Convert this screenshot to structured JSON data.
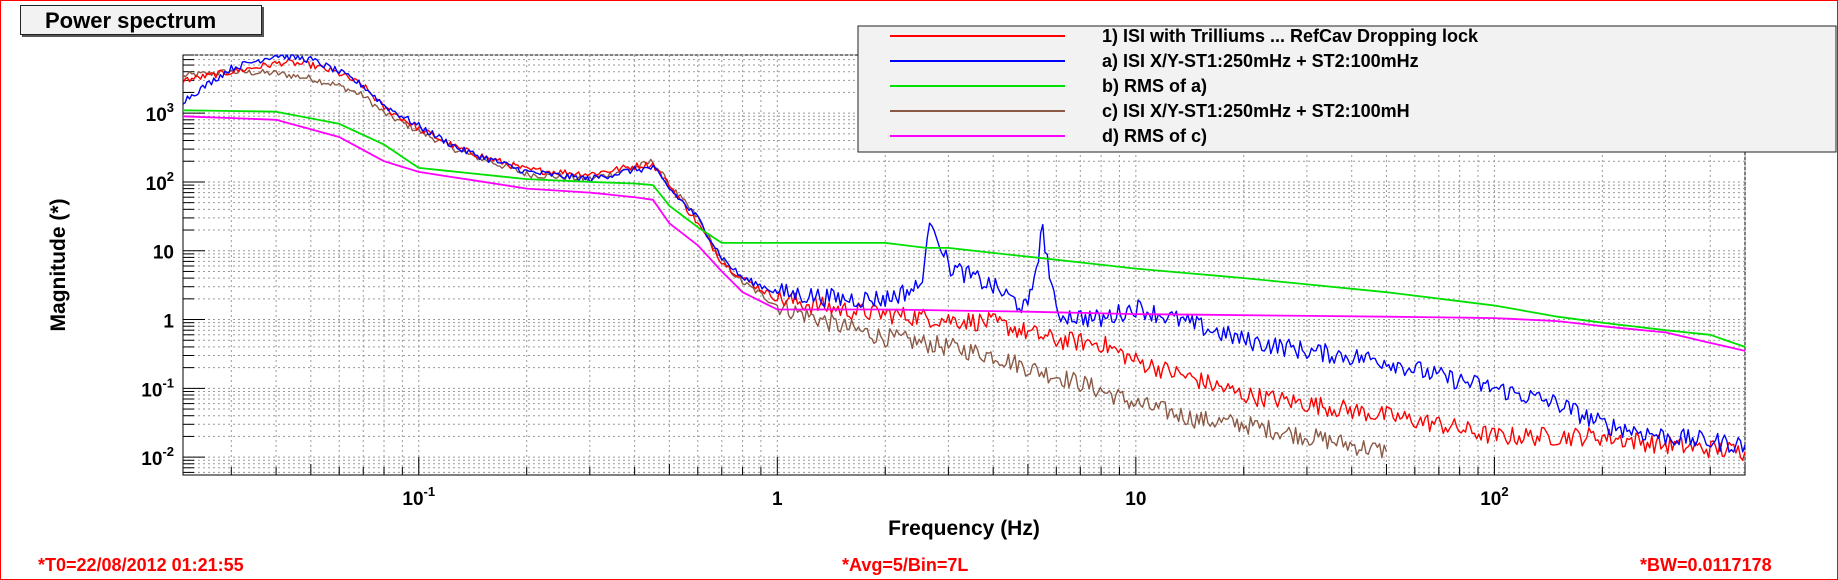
{
  "title": "Power spectrum",
  "footer": {
    "t0": "*T0=22/08/2012 01:21:55",
    "avg": "*Avg=5/Bin=7L",
    "bw": "*BW=0.0117178"
  },
  "chart_data": {
    "type": "line",
    "title": "Power spectrum",
    "xlabel": "Frequency (Hz)",
    "ylabel": "Magnitude (*)",
    "x_scale": "log",
    "y_scale": "log",
    "xlim": [
      0.022,
      500
    ],
    "ylim": [
      0.0055,
      7000
    ],
    "grid": true,
    "legend_position": "top-right",
    "x_ticks": [
      {
        "value": 0.1,
        "base": "10",
        "exp": "-1"
      },
      {
        "value": 1,
        "base": "1",
        "exp": ""
      },
      {
        "value": 10,
        "base": "10",
        "exp": ""
      },
      {
        "value": 100,
        "base": "10",
        "exp": "2"
      }
    ],
    "y_ticks": [
      {
        "value": 0.01,
        "base": "10",
        "exp": "-2"
      },
      {
        "value": 0.1,
        "base": "10",
        "exp": "-1"
      },
      {
        "value": 1,
        "base": "1",
        "exp": ""
      },
      {
        "value": 10,
        "base": "10",
        "exp": ""
      },
      {
        "value": 100,
        "base": "10",
        "exp": "2"
      },
      {
        "value": 1000,
        "base": "10",
        "exp": "3"
      }
    ],
    "series": [
      {
        "name": "1) ISI with Trilliums ... RefCav Dropping lock",
        "color": "#ff0000",
        "x": [
          0.022,
          0.03,
          0.042,
          0.05,
          0.06,
          0.07,
          0.08,
          0.1,
          0.13,
          0.2,
          0.3,
          0.4,
          0.45,
          0.5,
          0.6,
          0.7,
          0.8,
          1,
          1.5,
          2,
          3,
          4,
          5,
          6,
          8,
          10,
          15,
          20,
          30,
          50,
          70,
          100,
          150,
          200,
          300,
          500
        ],
        "y": [
          3000,
          4000,
          5500,
          5000,
          3800,
          2500,
          1200,
          600,
          300,
          150,
          130,
          170,
          180,
          90,
          25,
          7,
          4,
          2,
          1.4,
          1.2,
          1,
          0.9,
          0.65,
          0.5,
          0.45,
          0.25,
          0.13,
          0.08,
          0.06,
          0.04,
          0.03,
          0.02,
          0.02,
          0.02,
          0.015,
          0.012
        ]
      },
      {
        "name": "a) ISI X/Y-ST1:250mHz + ST2:100mHz",
        "color": "#0000ff",
        "x": [
          0.022,
          0.03,
          0.04,
          0.05,
          0.06,
          0.07,
          0.08,
          0.1,
          0.13,
          0.2,
          0.3,
          0.4,
          0.45,
          0.5,
          0.6,
          0.7,
          0.8,
          1,
          1.5,
          2,
          2.5,
          2.7,
          3,
          4,
          5,
          5.5,
          6,
          8,
          10,
          15,
          20,
          30,
          50,
          70,
          100,
          150,
          200,
          300,
          500
        ],
        "y": [
          1500,
          4500,
          7000,
          6000,
          4000,
          2500,
          1300,
          650,
          300,
          140,
          110,
          150,
          160,
          80,
          30,
          8,
          4,
          2.5,
          2,
          2,
          3,
          30,
          6,
          3,
          1.4,
          20,
          1.2,
          1,
          1.5,
          0.8,
          0.5,
          0.35,
          0.25,
          0.15,
          0.1,
          0.06,
          0.03,
          0.02,
          0.015
        ]
      },
      {
        "name": "b) RMS of a)",
        "color": "#00e000",
        "x": [
          0.022,
          0.04,
          0.06,
          0.08,
          0.1,
          0.2,
          0.3,
          0.4,
          0.45,
          0.5,
          0.6,
          0.7,
          1,
          2,
          2.6,
          3,
          10,
          20,
          50,
          100,
          150,
          200,
          300,
          400,
          500
        ],
        "y": [
          1100,
          1050,
          700,
          350,
          160,
          110,
          100,
          95,
          90,
          45,
          22,
          13,
          13,
          13,
          11,
          11,
          5.5,
          4,
          2.5,
          1.6,
          1.1,
          0.9,
          0.7,
          0.6,
          0.4
        ]
      },
      {
        "name": "c) ISI X/Y-ST1:250mHz + ST2:100mH",
        "color": "#8b5a46",
        "x": [
          0.022,
          0.03,
          0.04,
          0.05,
          0.06,
          0.07,
          0.08,
          0.1,
          0.13,
          0.2,
          0.3,
          0.4,
          0.45,
          0.5,
          0.6,
          0.7,
          0.8,
          1,
          1.5,
          2,
          3,
          4,
          5,
          7,
          10,
          15,
          20,
          30,
          50
        ],
        "y": [
          3500,
          4000,
          3800,
          3200,
          2500,
          1800,
          1000,
          550,
          280,
          130,
          110,
          160,
          200,
          90,
          30,
          7,
          3.5,
          1.6,
          0.8,
          0.55,
          0.4,
          0.3,
          0.2,
          0.12,
          0.06,
          0.035,
          0.03,
          0.02,
          0.012
        ]
      },
      {
        "name": "d) RMS of c)",
        "color": "#ff00ff",
        "x": [
          0.022,
          0.04,
          0.06,
          0.08,
          0.1,
          0.2,
          0.3,
          0.4,
          0.45,
          0.5,
          0.6,
          0.7,
          0.8,
          1,
          2,
          5,
          10,
          50,
          100,
          150,
          200,
          300,
          500
        ],
        "y": [
          900,
          800,
          450,
          200,
          140,
          80,
          70,
          60,
          55,
          25,
          12,
          5,
          2.5,
          1.4,
          1.4,
          1.3,
          1.2,
          1.1,
          1.05,
          0.95,
          0.8,
          0.65,
          0.35
        ]
      }
    ]
  }
}
